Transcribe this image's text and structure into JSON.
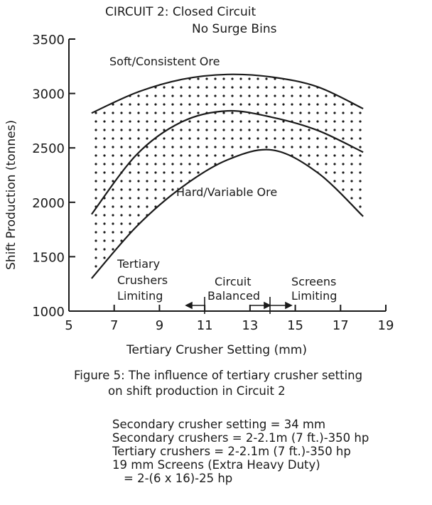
{
  "chart_data": {
    "type": "line",
    "title_lines": [
      "CIRCUIT 2: Closed Circuit",
      "No Surge Bins"
    ],
    "xlabel": "Tertiary Crusher Setting (mm)",
    "ylabel": "Shift Production (tonnes)",
    "xlim": [
      5,
      19
    ],
    "ylim": [
      1000,
      3500
    ],
    "x_ticks": [
      5,
      7,
      9,
      11,
      13,
      15,
      17,
      19
    ],
    "y_ticks": [
      1000,
      1500,
      2000,
      2500,
      3000,
      3500
    ],
    "curves": [
      {
        "label": "Soft/Consistent Ore",
        "x": [
          6,
          8,
          10,
          12,
          14,
          16,
          18
        ],
        "y": [
          2820,
          3010,
          3130,
          3175,
          3150,
          3060,
          2860
        ]
      },
      {
        "label": "",
        "x": [
          6,
          8,
          10,
          12,
          14,
          16,
          18
        ],
        "y": [
          1890,
          2440,
          2740,
          2840,
          2780,
          2660,
          2460
        ]
      },
      {
        "label": "Hard/Variable Ore",
        "x": [
          6,
          8,
          10,
          12,
          14,
          16,
          18
        ],
        "y": [
          1300,
          1780,
          2140,
          2390,
          2480,
          2270,
          1870
        ]
      }
    ],
    "shaded_region": "between Soft/Consistent Ore and Hard/Variable Ore curves (dotted)",
    "regions": [
      {
        "label_lines": [
          "Tertiary",
          "Crushers",
          "Limiting"
        ]
      },
      {
        "label_lines": [
          "Circuit",
          "Balanced"
        ],
        "x_range": [
          10.5,
          14.8
        ]
      },
      {
        "label_lines": [
          "Screens",
          "Limiting"
        ]
      }
    ]
  },
  "caption": {
    "line1": "Figure 5: The influence of tertiary crusher setting",
    "line2": "on shift production in Circuit 2"
  },
  "notes": [
    "Secondary crusher setting = 34 mm",
    "Secondary crushers = 2-2.1m (7 ft.)-350 hp",
    "Tertiary crushers = 2-2.1m (7 ft.)-350 hp",
    "19 mm Screens (Extra Heavy Duty)",
    "= 2-(6 x 16)-25 hp"
  ]
}
